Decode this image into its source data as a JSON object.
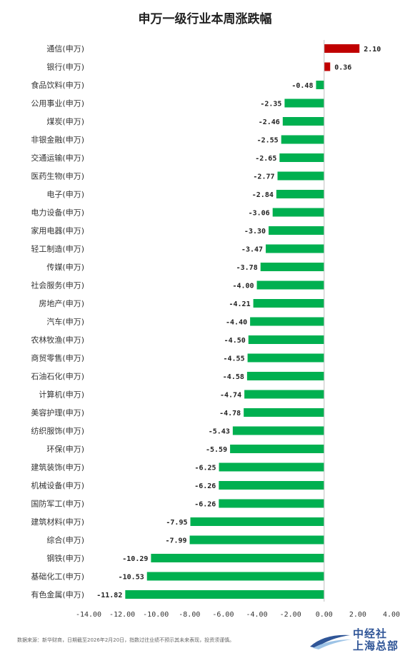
{
  "footer": {
    "source": "数据来源：新华财商，日期截至2026年2月20日，指数过往业绩不预示其未来表现，投资须谨慎。",
    "logo_line1": "中经社",
    "logo_line2": "上海总部"
  },
  "colors": {
    "positive": "#c00000",
    "negative": "#00b050"
  },
  "chart_data": {
    "type": "bar",
    "orientation": "horizontal",
    "title": "申万一级行业本周涨跌幅",
    "categories": [
      "通信(申万)",
      "银行(申万)",
      "食品饮料(申万)",
      "公用事业(申万)",
      "煤炭(申万)",
      "非银金融(申万)",
      "交通运输(申万)",
      "医药生物(申万)",
      "电子(申万)",
      "电力设备(申万)",
      "家用电器(申万)",
      "轻工制造(申万)",
      "传媒(申万)",
      "社会服务(申万)",
      "房地产(申万)",
      "汽车(申万)",
      "农林牧渔(申万)",
      "商贸零售(申万)",
      "石油石化(申万)",
      "计算机(申万)",
      "美容护理(申万)",
      "纺织服饰(申万)",
      "环保(申万)",
      "建筑装饰(申万)",
      "机械设备(申万)",
      "国防军工(申万)",
      "建筑材料(申万)",
      "综合(申万)",
      "钢铁(申万)",
      "基础化工(申万)",
      "有色金属(申万)"
    ],
    "values": [
      2.1,
      0.36,
      -0.48,
      -2.35,
      -2.46,
      -2.55,
      -2.65,
      -2.77,
      -2.84,
      -3.06,
      -3.3,
      -3.47,
      -3.78,
      -4.0,
      -4.21,
      -4.4,
      -4.5,
      -4.55,
      -4.58,
      -4.74,
      -4.78,
      -5.43,
      -5.59,
      -6.25,
      -6.26,
      -6.26,
      -7.95,
      -7.99,
      -10.29,
      -10.53,
      -11.82
    ],
    "value_labels": [
      "2.10",
      "0.36",
      "-0.48",
      "-2.35",
      "-2.46",
      "-2.55",
      "-2.65",
      "-2.77",
      "-2.84",
      "-3.06",
      "-3.30",
      "-3.47",
      "-3.78",
      "-4.00",
      "-4.21",
      "-4.40",
      "-4.50",
      "-4.55",
      "-4.58",
      "-4.74",
      "-4.78",
      "-5.43",
      "-5.59",
      "-6.25",
      "-6.26",
      "-6.26",
      "-7.95",
      "-7.99",
      "-10.29",
      "-10.53",
      "-11.82"
    ],
    "xlim": [
      -14,
      4
    ],
    "xticks": [
      -14,
      -12,
      -10,
      -8,
      -6,
      -4,
      -2,
      0,
      2,
      4
    ],
    "xtick_labels": [
      "-14.00",
      "-12.00",
      "-10.00",
      "-8.00",
      "-6.00",
      "-4.00",
      "-2.00",
      "0.00",
      "2.00",
      "4.00"
    ],
    "grid": false,
    "legend": "none"
  }
}
